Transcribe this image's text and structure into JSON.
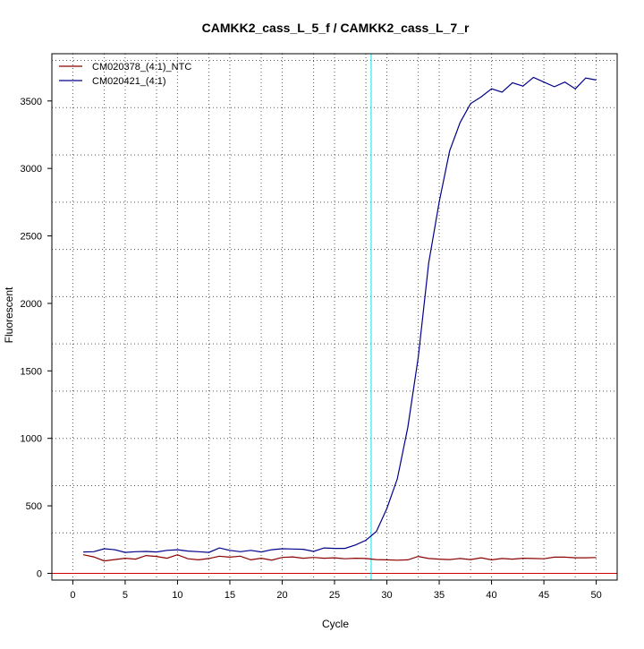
{
  "chart_data": {
    "type": "line",
    "title": "CAMKK2_cass_L_5_f / CAMKK2_cass_L_7_r",
    "xlabel": "Cycle",
    "ylabel": "Fluorescent",
    "xlim": [
      -2,
      52
    ],
    "ylim": [
      -50,
      3850
    ],
    "x_ticks": [
      0,
      5,
      10,
      15,
      20,
      25,
      30,
      35,
      40,
      45,
      50
    ],
    "y_ticks": [
      0,
      500,
      1000,
      1500,
      2000,
      2500,
      3000,
      3500
    ],
    "grid": true,
    "grid_x_minor": [
      3,
      8,
      13,
      18,
      23,
      28,
      33,
      38,
      43,
      48
    ],
    "grid_y_minor": [
      -50,
      300,
      650,
      1000,
      1350,
      1700,
      2050,
      2400,
      2750,
      3100,
      3450,
      3800
    ],
    "threshold": {
      "x": 28.5,
      "color": "#00e5ee"
    },
    "baseline": {
      "y": 0,
      "color": "#cc0000"
    },
    "legend": {
      "position": "top-left"
    },
    "x": [
      1,
      2,
      3,
      4,
      5,
      6,
      7,
      8,
      9,
      10,
      11,
      12,
      13,
      14,
      15,
      16,
      17,
      18,
      19,
      20,
      21,
      22,
      23,
      24,
      25,
      26,
      27,
      28,
      29,
      30,
      31,
      32,
      33,
      34,
      35,
      36,
      37,
      38,
      39,
      40,
      41,
      42,
      43,
      44,
      45,
      46,
      47,
      48,
      49,
      50
    ],
    "series": [
      {
        "name": "CM020378_(4:1)_NTC",
        "color": "#8b0000",
        "values": [
          138,
          122,
          92,
          102,
          112,
          105,
          132,
          125,
          112,
          138,
          108,
          100,
          110,
          127,
          120,
          127,
          100,
          112,
          98,
          118,
          122,
          112,
          118,
          112,
          115,
          108,
          112,
          110,
          102,
          100,
          97,
          100,
          125,
          110,
          105,
          102,
          110,
          102,
          115,
          100,
          110,
          105,
          112,
          110,
          108,
          120,
          120,
          115,
          115,
          117
        ]
      },
      {
        "name": "CM020421_(4:1)",
        "color": "#00008b",
        "values": [
          158,
          160,
          182,
          175,
          155,
          160,
          162,
          158,
          170,
          175,
          165,
          160,
          155,
          188,
          170,
          160,
          170,
          158,
          175,
          182,
          180,
          178,
          162,
          188,
          185,
          185,
          210,
          245,
          310,
          480,
          700,
          1080,
          1600,
          2300,
          2750,
          3130,
          3340,
          3480,
          3530,
          3590,
          3565,
          3635,
          3610,
          3675,
          3640,
          3605,
          3640,
          3590,
          3670,
          3655
        ]
      }
    ]
  }
}
